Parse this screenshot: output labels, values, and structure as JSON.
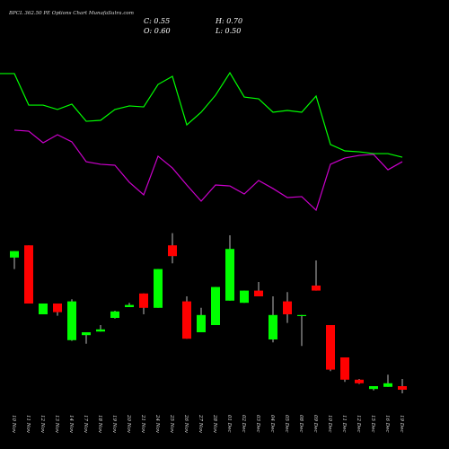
{
  "chart_data": {
    "type": "candlestick",
    "title": "BPCL 362.50 PE Options Chart MunafaSutra.com",
    "ohlc_header": [
      "C: 0.55",
      "H: 0.70",
      "O: 0.60",
      "L: 0.50"
    ],
    "categories": [
      "10 Nov",
      "11 Nov",
      "12 Nov",
      "13 Nov",
      "14 Nov",
      "17 Nov",
      "18 Nov",
      "19 Nov",
      "20 Nov",
      "21 Nov",
      "24 Nov",
      "25 Nov",
      "26 Nov",
      "27 Nov",
      "28 Nov",
      "01 Dec",
      "02 Dec",
      "03 Dec",
      "04 Dec",
      "05 Dec",
      "08 Dec",
      "09 Dec",
      "10 Dec",
      "11 Dec",
      "12 Dec",
      "15 Dec",
      "16 Dec",
      "19 Dec"
    ],
    "open": [
      2.39,
      2.56,
      1.6,
      1.75,
      1.24,
      1.31,
      1.36,
      1.55,
      1.7,
      1.89,
      1.69,
      2.56,
      1.78,
      1.35,
      1.45,
      1.79,
      1.76,
      1.93,
      1.25,
      1.78,
      1.575,
      2.0,
      1.45,
      1.0,
      0.69,
      0.56,
      0.59,
      0.6
    ],
    "high": [
      2.48,
      2.56,
      1.75,
      1.75,
      1.81,
      1.35,
      1.45,
      1.65,
      1.76,
      1.89,
      2.23,
      2.73,
      1.85,
      1.69,
      1.98,
      2.7,
      1.93,
      2.05,
      1.85,
      1.91,
      1.59,
      2.35,
      1.45,
      1.0,
      0.7,
      0.6,
      0.76,
      0.7
    ],
    "low": [
      2.23,
      1.75,
      1.6,
      1.58,
      1.23,
      1.19,
      1.36,
      1.54,
      1.7,
      1.6,
      1.69,
      2.31,
      1.26,
      1.35,
      1.45,
      1.79,
      1.76,
      1.85,
      1.21,
      1.48,
      1.16,
      1.93,
      0.81,
      0.66,
      0.63,
      0.54,
      0.59,
      0.5
    ],
    "close": [
      2.48,
      1.75,
      1.75,
      1.63,
      1.78,
      1.35,
      1.39,
      1.64,
      1.73,
      1.69,
      2.23,
      2.41,
      1.26,
      1.59,
      1.98,
      2.51,
      1.93,
      1.85,
      1.59,
      1.6,
      1.59,
      1.93,
      0.83,
      0.69,
      0.64,
      0.6,
      0.64,
      0.55
    ],
    "up_color": "#00ff00",
    "down_color": "#ff0000",
    "ylim": [
      0.45,
      2.9
    ],
    "series": [
      {
        "color": "#00ff00",
        "axis": "y2",
        "values": [
          87.8,
          68.3,
          68.3,
          65.6,
          68.9,
          58.3,
          58.9,
          65.6,
          67.8,
          67.2,
          81.1,
          86.1,
          56.1,
          63.9,
          74.4,
          88.3,
          73.3,
          72.2,
          63.9,
          65.0,
          63.9,
          73.9,
          43.9,
          40.0,
          39.4,
          38.3,
          38.3,
          36.1
        ]
      },
      {
        "color": "#cc00cc",
        "axis": "y2",
        "values": [
          52.8,
          52.2,
          45.0,
          50.0,
          45.6,
          33.3,
          31.7,
          31.1,
          20.6,
          12.8,
          36.7,
          29.4,
          18.9,
          8.9,
          18.9,
          18.3,
          13.3,
          21.7,
          16.7,
          11.1,
          11.7,
          3.3,
          31.7,
          35.6,
          37.2,
          37.8,
          28.3,
          33.3
        ]
      }
    ],
    "y2lim": [
      0,
      100
    ]
  }
}
